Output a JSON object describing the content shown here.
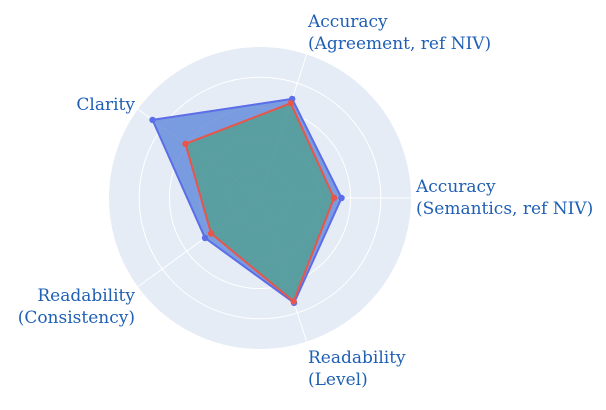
{
  "chart_data": {
    "type": "radar",
    "axes": [
      {
        "label_lines": [
          "Accuracy",
          "(Semantics, ref NIV)"
        ]
      },
      {
        "label_lines": [
          "Accuracy",
          "(Agreement, ref NIV)"
        ]
      },
      {
        "label_lines": [
          "Clarity"
        ]
      },
      {
        "label_lines": [
          "Readability",
          "(Consistency)"
        ]
      },
      {
        "label_lines": [
          "Readability",
          "(Level)"
        ]
      }
    ],
    "radial_range": [
      0,
      1
    ],
    "grid": true,
    "series": [
      {
        "values": [
          0.54,
          0.69,
          0.88,
          0.45,
          0.73
        ],
        "line_color": "#5b6ee8",
        "fill_color": "#5b84d8",
        "fill_opacity": 0.78,
        "marker_color": "#5b6ee8"
      },
      {
        "values": [
          0.49,
          0.66,
          0.61,
          0.4,
          0.72
        ],
        "line_color": "#e8564a",
        "fill_color": "#3fa06e",
        "fill_opacity": 0.55,
        "marker_color": "#e8564a"
      }
    ],
    "colors": {
      "polar_background": "#e5ecf6",
      "gridline": "#ffffff",
      "label_text": "#1f5fb4"
    }
  }
}
